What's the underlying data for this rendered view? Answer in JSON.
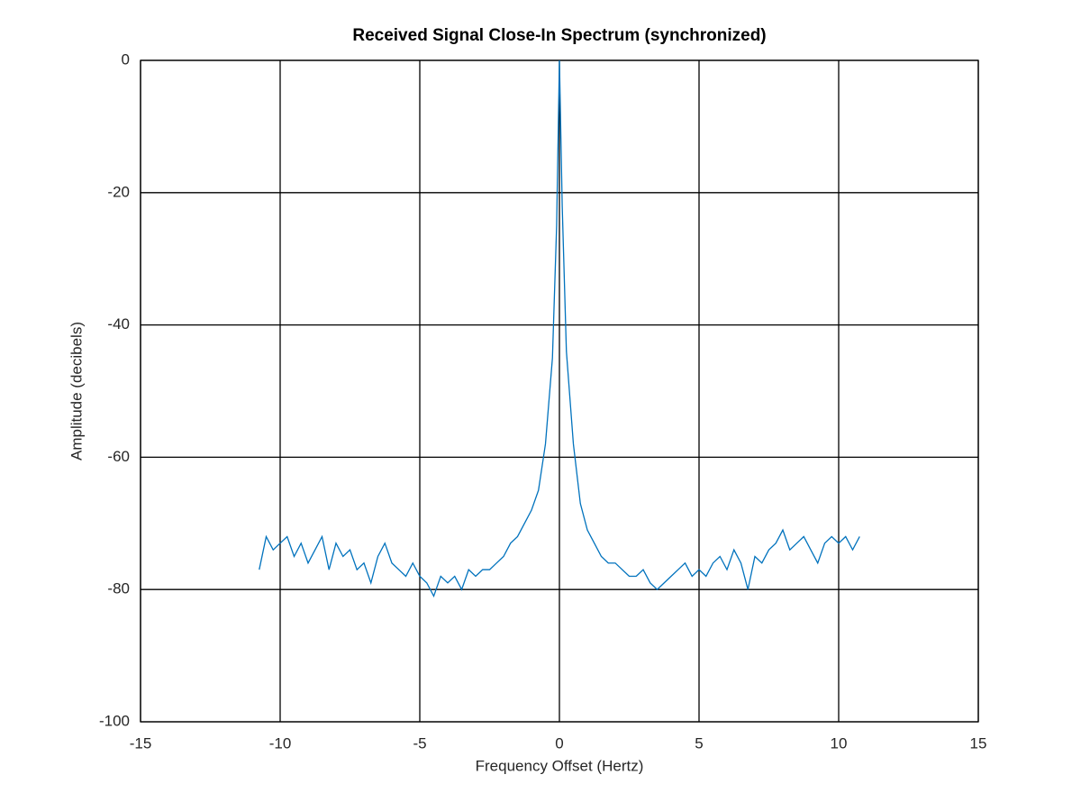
{
  "chart_data": {
    "type": "line",
    "title": "Received Signal Close-In Spectrum (synchronized)",
    "xlabel": "Frequency Offset (Hertz)",
    "ylabel": "Amplitude (decibels)",
    "xlim": [
      -15,
      15
    ],
    "ylim": [
      -100,
      0
    ],
    "xticks": [
      -15,
      -10,
      -5,
      0,
      5,
      10,
      15
    ],
    "yticks": [
      -100,
      -80,
      -60,
      -40,
      -20,
      0
    ],
    "grid": true,
    "x": [
      -10.75,
      -10.5,
      -10.25,
      -10,
      -9.75,
      -9.5,
      -9.25,
      -9,
      -8.75,
      -8.5,
      -8.25,
      -8,
      -7.75,
      -7.5,
      -7.25,
      -7,
      -6.75,
      -6.5,
      -6.25,
      -6,
      -5.75,
      -5.5,
      -5.25,
      -5,
      -4.75,
      -4.5,
      -4.25,
      -4,
      -3.75,
      -3.5,
      -3.25,
      -3,
      -2.75,
      -2.5,
      -2.25,
      -2,
      -1.75,
      -1.5,
      -1.25,
      -1,
      -0.75,
      -0.5,
      -0.25,
      -0.1,
      0,
      0.1,
      0.25,
      0.5,
      0.75,
      1,
      1.25,
      1.5,
      1.75,
      2,
      2.25,
      2.5,
      2.75,
      3,
      3.25,
      3.5,
      3.75,
      4,
      4.25,
      4.5,
      4.75,
      5,
      5.25,
      5.5,
      5.75,
      6,
      6.25,
      6.5,
      6.75,
      7,
      7.25,
      7.5,
      7.75,
      8,
      8.25,
      8.5,
      8.75,
      9,
      9.25,
      9.5,
      9.75,
      10,
      10.25,
      10.5,
      10.75
    ],
    "series": [
      {
        "color": "#0072bd",
        "values": [
          -77,
          -72,
          -74,
          -73,
          -72,
          -75,
          -73,
          -76,
          -74,
          -72,
          -77,
          -73,
          -75,
          -74,
          -77,
          -76,
          -79,
          -75,
          -73,
          -76,
          -77,
          -78,
          -76,
          -78,
          -79,
          -81,
          -78,
          -79,
          -78,
          -80,
          -77,
          -78,
          -77,
          -77,
          -76,
          -75,
          -73,
          -72,
          -70,
          -68,
          -65,
          -58,
          -45,
          -25,
          0,
          -22,
          -44,
          -58,
          -67,
          -71,
          -73,
          -75,
          -76,
          -76,
          -77,
          -78,
          -78,
          -77,
          -79,
          -80,
          -79,
          -78,
          -77,
          -76,
          -78,
          -77,
          -78,
          -76,
          -75,
          -77,
          -74,
          -76,
          -80,
          -75,
          -76,
          -74,
          -73,
          -71,
          -74,
          -73,
          -72,
          -74,
          -76,
          -73,
          -72,
          -73,
          -72,
          -74,
          -72
        ]
      }
    ]
  }
}
